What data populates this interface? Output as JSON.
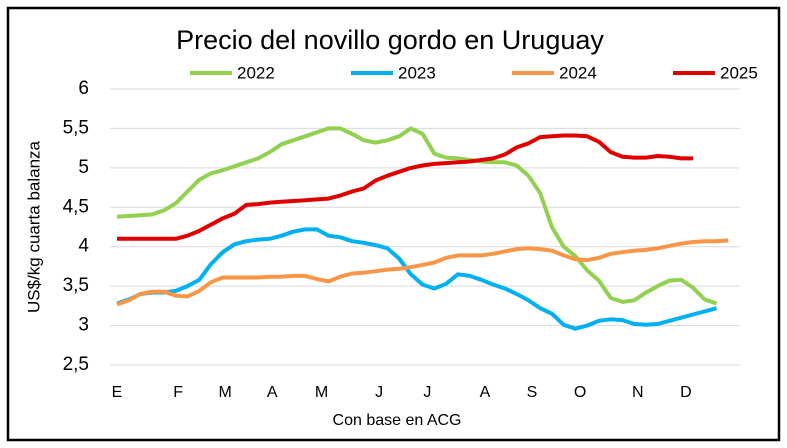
{
  "chart_data": {
    "type": "line",
    "title": "Precio del novillo gordo en Uruguay",
    "y_label": "US$/kg cuarta balanza",
    "x_label": "Con base en ACG",
    "x": [
      0,
      1,
      2,
      3,
      4,
      5,
      6,
      7,
      8,
      9,
      10,
      11,
      12,
      13,
      14,
      15,
      16,
      17,
      18,
      19,
      20,
      21,
      22,
      23,
      24,
      25,
      26,
      27,
      28,
      29,
      30,
      31,
      32,
      33,
      34,
      35,
      36,
      37,
      38,
      39,
      40,
      41,
      42,
      43,
      44,
      45,
      46,
      47,
      48,
      49,
      50,
      51,
      52
    ],
    "xlim": [
      0,
      53
    ],
    "xticks": [
      {
        "value": 0,
        "label": "E"
      },
      {
        "value": 5.2,
        "label": "F"
      },
      {
        "value": 9.2,
        "label": "M"
      },
      {
        "value": 13.2,
        "label": "A"
      },
      {
        "value": 17.4,
        "label": "M"
      },
      {
        "value": 22.3,
        "label": "J"
      },
      {
        "value": 26.4,
        "label": "J"
      },
      {
        "value": 31.3,
        "label": "A"
      },
      {
        "value": 35.3,
        "label": "S"
      },
      {
        "value": 39.4,
        "label": "O"
      },
      {
        "value": 44.3,
        "label": "N"
      },
      {
        "value": 48.4,
        "label": "D"
      }
    ],
    "ylim": [
      2.5,
      6
    ],
    "yticks": [
      {
        "value": 2.5,
        "label": "2,5"
      },
      3,
      {
        "value": 3.5,
        "label": "3,5"
      },
      4,
      {
        "value": 4.5,
        "label": "4,5"
      },
      5,
      {
        "value": 5.5,
        "label": "5,5"
      },
      6
    ],
    "grid": true,
    "legend": "top",
    "series": [
      {
        "name": "2022",
        "color": "#92d050",
        "values": [
          4.38,
          4.39,
          4.4,
          4.41,
          4.46,
          4.55,
          4.7,
          4.85,
          4.93,
          4.97,
          5.02,
          5.07,
          5.12,
          5.2,
          5.3,
          5.35,
          5.4,
          5.45,
          5.5,
          5.5,
          5.43,
          5.35,
          5.32,
          5.35,
          5.4,
          5.5,
          5.43,
          5.18,
          5.13,
          5.12,
          5.1,
          5.08,
          5.07,
          5.07,
          5.03,
          4.9,
          4.68,
          4.25,
          4.0,
          3.88,
          3.7,
          3.57,
          3.35,
          3.3,
          3.32,
          3.42,
          3.5,
          3.57,
          3.58,
          3.48,
          3.33,
          3.28,
          null
        ]
      },
      {
        "name": "2023",
        "color": "#00b0f0",
        "values": [
          3.28,
          3.33,
          3.4,
          3.42,
          3.42,
          3.44,
          3.5,
          3.58,
          3.78,
          3.93,
          4.03,
          4.07,
          4.09,
          4.1,
          4.14,
          4.19,
          4.22,
          4.22,
          4.14,
          4.12,
          4.07,
          4.05,
          4.02,
          3.98,
          3.85,
          3.65,
          3.52,
          3.47,
          3.53,
          3.65,
          3.63,
          3.58,
          3.52,
          3.47,
          3.4,
          3.32,
          3.22,
          3.15,
          3.01,
          2.96,
          3.0,
          3.06,
          3.08,
          3.07,
          3.02,
          3.01,
          3.02,
          3.06,
          3.1,
          3.14,
          3.18,
          3.22,
          null
        ]
      },
      {
        "name": "2024",
        "color": "#f79646",
        "values": [
          3.27,
          3.32,
          3.4,
          3.43,
          3.43,
          3.38,
          3.37,
          3.44,
          3.55,
          3.61,
          3.61,
          3.61,
          3.61,
          3.62,
          3.62,
          3.63,
          3.63,
          3.59,
          3.56,
          3.62,
          3.66,
          3.67,
          3.69,
          3.71,
          3.72,
          3.74,
          3.77,
          3.8,
          3.86,
          3.89,
          3.89,
          3.89,
          3.91,
          3.94,
          3.97,
          3.98,
          3.97,
          3.95,
          3.89,
          3.84,
          3.83,
          3.86,
          3.91,
          3.93,
          3.95,
          3.96,
          3.98,
          4.01,
          4.04,
          4.06,
          4.07,
          4.07,
          4.08
        ]
      },
      {
        "name": "2025",
        "color": "#e00000",
        "values": [
          4.1,
          4.1,
          4.1,
          4.1,
          4.1,
          4.1,
          4.14,
          4.2,
          4.28,
          4.36,
          4.42,
          4.53,
          4.54,
          4.56,
          4.57,
          4.58,
          4.59,
          4.6,
          4.61,
          4.65,
          4.7,
          4.74,
          4.84,
          4.9,
          4.95,
          5.0,
          5.03,
          5.05,
          5.06,
          5.07,
          5.08,
          5.1,
          5.12,
          5.17,
          5.26,
          5.31,
          5.39,
          5.4,
          5.41,
          5.41,
          5.4,
          5.33,
          5.2,
          5.14,
          5.13,
          5.13,
          5.15,
          5.14,
          5.12,
          5.12,
          null,
          null,
          null
        ]
      }
    ]
  }
}
